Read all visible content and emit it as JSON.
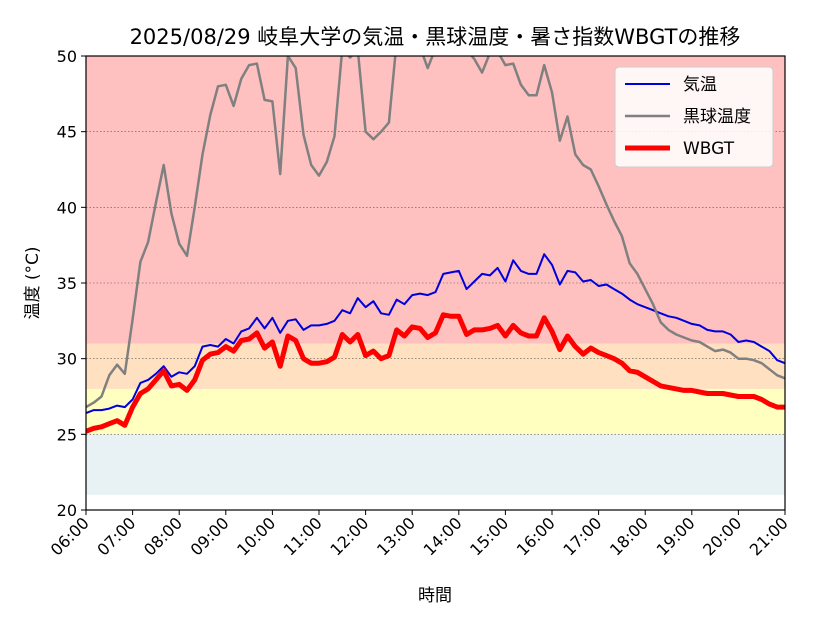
{
  "chart_data": {
    "type": "line",
    "title": "2025/08/29 岐阜大学の気温・黒球温度・暑さ指数WBGTの推移",
    "xlabel": "時間",
    "ylabel": "温度 (°C)",
    "xlim": [
      "06:00",
      "21:00"
    ],
    "ylim": [
      20,
      50
    ],
    "grid": true,
    "legend_position": "top-right",
    "x_ticks": [
      "06:00",
      "07:00",
      "08:00",
      "09:00",
      "10:00",
      "11:00",
      "12:00",
      "13:00",
      "14:00",
      "15:00",
      "16:00",
      "17:00",
      "18:00",
      "19:00",
      "20:00",
      "21:00"
    ],
    "y_ticks": [
      20,
      25,
      30,
      35,
      40,
      45,
      50
    ],
    "bands": [
      {
        "from": 21,
        "to": 25,
        "color": "#e8f2f4"
      },
      {
        "from": 25,
        "to": 28,
        "color": "#ffffc0"
      },
      {
        "from": 28,
        "to": 31,
        "color": "#ffe0c0"
      },
      {
        "from": 31,
        "to": 50,
        "color": "#ffc0c0"
      }
    ],
    "series": [
      {
        "name": "気温",
        "color": "#0000dd",
        "points": [
          [
            "06:00",
            26.4
          ],
          [
            "06:10",
            26.6
          ],
          [
            "06:20",
            26.6
          ],
          [
            "06:30",
            26.7
          ],
          [
            "06:40",
            26.9
          ],
          [
            "06:50",
            26.8
          ],
          [
            "07:00",
            27.3
          ],
          [
            "07:10",
            28.4
          ],
          [
            "07:20",
            28.6
          ],
          [
            "07:30",
            29.0
          ],
          [
            "07:40",
            29.5
          ],
          [
            "07:50",
            28.8
          ],
          [
            "08:00",
            29.1
          ],
          [
            "08:10",
            29.0
          ],
          [
            "08:20",
            29.5
          ],
          [
            "08:30",
            30.8
          ],
          [
            "08:40",
            30.9
          ],
          [
            "08:50",
            30.8
          ],
          [
            "09:00",
            31.3
          ],
          [
            "09:10",
            31.0
          ],
          [
            "09:20",
            31.8
          ],
          [
            "09:30",
            32.0
          ],
          [
            "09:40",
            32.7
          ],
          [
            "09:50",
            32.0
          ],
          [
            "10:00",
            32.7
          ],
          [
            "10:10",
            31.7
          ],
          [
            "10:20",
            32.5
          ],
          [
            "10:30",
            32.6
          ],
          [
            "10:40",
            31.9
          ],
          [
            "10:50",
            32.2
          ],
          [
            "11:00",
            32.2
          ],
          [
            "11:10",
            32.3
          ],
          [
            "11:20",
            32.5
          ],
          [
            "11:30",
            33.2
          ],
          [
            "11:40",
            33.0
          ],
          [
            "11:50",
            34.0
          ],
          [
            "12:00",
            33.4
          ],
          [
            "12:10",
            33.8
          ],
          [
            "12:20",
            33.0
          ],
          [
            "12:30",
            32.9
          ],
          [
            "12:40",
            33.9
          ],
          [
            "12:50",
            33.6
          ],
          [
            "13:00",
            34.2
          ],
          [
            "13:10",
            34.3
          ],
          [
            "13:20",
            34.2
          ],
          [
            "13:30",
            34.4
          ],
          [
            "13:40",
            35.6
          ],
          [
            "13:50",
            35.7
          ],
          [
            "14:00",
            35.8
          ],
          [
            "14:10",
            34.6
          ],
          [
            "14:20",
            35.1
          ],
          [
            "14:30",
            35.6
          ],
          [
            "14:40",
            35.5
          ],
          [
            "14:50",
            36.0
          ],
          [
            "15:00",
            35.1
          ],
          [
            "15:10",
            36.5
          ],
          [
            "15:20",
            35.8
          ],
          [
            "15:30",
            35.6
          ],
          [
            "15:40",
            35.6
          ],
          [
            "15:50",
            36.9
          ],
          [
            "16:00",
            36.2
          ],
          [
            "16:10",
            34.9
          ],
          [
            "16:20",
            35.8
          ],
          [
            "16:30",
            35.7
          ],
          [
            "16:40",
            35.1
          ],
          [
            "16:50",
            35.2
          ],
          [
            "17:00",
            34.8
          ],
          [
            "17:10",
            34.9
          ],
          [
            "17:20",
            34.6
          ],
          [
            "17:30",
            34.3
          ],
          [
            "17:40",
            33.9
          ],
          [
            "17:50",
            33.6
          ],
          [
            "18:00",
            33.4
          ],
          [
            "18:10",
            33.2
          ],
          [
            "18:20",
            33.0
          ],
          [
            "18:30",
            32.8
          ],
          [
            "18:40",
            32.7
          ],
          [
            "18:50",
            32.5
          ],
          [
            "19:00",
            32.3
          ],
          [
            "19:10",
            32.2
          ],
          [
            "19:20",
            31.9
          ],
          [
            "19:30",
            31.8
          ],
          [
            "19:40",
            31.8
          ],
          [
            "19:50",
            31.6
          ],
          [
            "20:00",
            31.1
          ],
          [
            "20:10",
            31.2
          ],
          [
            "20:20",
            31.1
          ],
          [
            "20:30",
            30.8
          ],
          [
            "20:40",
            30.5
          ],
          [
            "20:50",
            29.9
          ],
          [
            "21:00",
            29.7
          ]
        ]
      },
      {
        "name": "黒球温度",
        "color": "#808080",
        "points": [
          [
            "06:00",
            26.8
          ],
          [
            "06:10",
            27.1
          ],
          [
            "06:20",
            27.5
          ],
          [
            "06:30",
            28.9
          ],
          [
            "06:40",
            29.6
          ],
          [
            "06:50",
            29.0
          ],
          [
            "07:00",
            32.6
          ],
          [
            "07:10",
            36.4
          ],
          [
            "07:20",
            37.7
          ],
          [
            "07:30",
            40.3
          ],
          [
            "07:40",
            42.8
          ],
          [
            "07:50",
            39.6
          ],
          [
            "08:00",
            37.6
          ],
          [
            "08:10",
            36.8
          ],
          [
            "08:20",
            40.0
          ],
          [
            "08:30",
            43.5
          ],
          [
            "08:40",
            46.1
          ],
          [
            "08:50",
            48.0
          ],
          [
            "09:00",
            48.1
          ],
          [
            "09:10",
            46.7
          ],
          [
            "09:20",
            48.5
          ],
          [
            "09:30",
            49.4
          ],
          [
            "09:40",
            49.5
          ],
          [
            "09:50",
            47.1
          ],
          [
            "10:00",
            47.0
          ],
          [
            "10:10",
            42.2
          ],
          [
            "10:20",
            50.0
          ],
          [
            "10:30",
            49.2
          ],
          [
            "10:40",
            44.8
          ],
          [
            "10:50",
            42.8
          ],
          [
            "11:00",
            42.1
          ],
          [
            "11:10",
            43.0
          ],
          [
            "11:20",
            44.7
          ],
          [
            "11:30",
            50.5
          ],
          [
            "11:40",
            49.9
          ],
          [
            "11:50",
            50.4
          ],
          [
            "12:00",
            45.0
          ],
          [
            "12:10",
            44.5
          ],
          [
            "12:20",
            45.0
          ],
          [
            "12:30",
            45.6
          ],
          [
            "12:40",
            51.0
          ],
          [
            "12:50",
            51.2
          ],
          [
            "13:00",
            51.0
          ],
          [
            "13:10",
            50.6
          ],
          [
            "13:20",
            49.2
          ],
          [
            "13:30",
            50.5
          ],
          [
            "13:40",
            51.0
          ],
          [
            "13:50",
            51.0
          ],
          [
            "14:00",
            50.8
          ],
          [
            "14:10",
            50.4
          ],
          [
            "14:20",
            49.8
          ],
          [
            "14:30",
            48.9
          ],
          [
            "14:40",
            50.2
          ],
          [
            "14:50",
            50.3
          ],
          [
            "15:00",
            49.4
          ],
          [
            "15:10",
            49.5
          ],
          [
            "15:20",
            48.1
          ],
          [
            "15:30",
            47.4
          ],
          [
            "15:40",
            47.4
          ],
          [
            "15:50",
            49.4
          ],
          [
            "16:00",
            47.6
          ],
          [
            "16:10",
            44.4
          ],
          [
            "16:20",
            46.0
          ],
          [
            "16:30",
            43.5
          ],
          [
            "16:40",
            42.8
          ],
          [
            "16:50",
            42.5
          ],
          [
            "17:00",
            41.4
          ],
          [
            "17:10",
            40.2
          ],
          [
            "17:20",
            39.1
          ],
          [
            "17:30",
            38.1
          ],
          [
            "17:40",
            36.3
          ],
          [
            "17:50",
            35.6
          ],
          [
            "18:00",
            34.6
          ],
          [
            "18:10",
            33.6
          ],
          [
            "18:20",
            32.4
          ],
          [
            "18:30",
            31.9
          ],
          [
            "18:40",
            31.6
          ],
          [
            "18:50",
            31.4
          ],
          [
            "19:00",
            31.2
          ],
          [
            "19:10",
            31.1
          ],
          [
            "19:20",
            30.8
          ],
          [
            "19:30",
            30.5
          ],
          [
            "19:40",
            30.6
          ],
          [
            "19:50",
            30.4
          ],
          [
            "20:00",
            30.0
          ],
          [
            "20:10",
            30.0
          ],
          [
            "20:20",
            29.9
          ],
          [
            "20:30",
            29.7
          ],
          [
            "20:40",
            29.3
          ],
          [
            "20:50",
            28.9
          ],
          [
            "21:00",
            28.7
          ]
        ]
      },
      {
        "name": "WBGT",
        "color": "#ff0000",
        "points": [
          [
            "06:00",
            25.2
          ],
          [
            "06:10",
            25.4
          ],
          [
            "06:20",
            25.5
          ],
          [
            "06:30",
            25.7
          ],
          [
            "06:40",
            25.9
          ],
          [
            "06:50",
            25.6
          ],
          [
            "07:00",
            26.8
          ],
          [
            "07:10",
            27.7
          ],
          [
            "07:20",
            28.0
          ],
          [
            "07:30",
            28.6
          ],
          [
            "07:40",
            29.2
          ],
          [
            "07:50",
            28.2
          ],
          [
            "08:00",
            28.3
          ],
          [
            "08:10",
            27.9
          ],
          [
            "08:20",
            28.6
          ],
          [
            "08:30",
            29.9
          ],
          [
            "08:40",
            30.3
          ],
          [
            "08:50",
            30.4
          ],
          [
            "09:00",
            30.8
          ],
          [
            "09:10",
            30.5
          ],
          [
            "09:20",
            31.2
          ],
          [
            "09:30",
            31.3
          ],
          [
            "09:40",
            31.7
          ],
          [
            "09:50",
            30.7
          ],
          [
            "10:00",
            31.1
          ],
          [
            "10:10",
            29.5
          ],
          [
            "10:20",
            31.5
          ],
          [
            "10:30",
            31.2
          ],
          [
            "10:40",
            30.0
          ],
          [
            "10:50",
            29.7
          ],
          [
            "11:00",
            29.7
          ],
          [
            "11:10",
            29.8
          ],
          [
            "11:20",
            30.1
          ],
          [
            "11:30",
            31.6
          ],
          [
            "11:40",
            31.1
          ],
          [
            "11:50",
            31.6
          ],
          [
            "12:00",
            30.2
          ],
          [
            "12:10",
            30.5
          ],
          [
            "12:20",
            30.0
          ],
          [
            "12:30",
            30.2
          ],
          [
            "12:40",
            31.9
          ],
          [
            "12:50",
            31.5
          ],
          [
            "13:00",
            32.1
          ],
          [
            "13:10",
            32.0
          ],
          [
            "13:20",
            31.4
          ],
          [
            "13:30",
            31.7
          ],
          [
            "13:40",
            32.9
          ],
          [
            "13:50",
            32.8
          ],
          [
            "14:00",
            32.8
          ],
          [
            "14:10",
            31.6
          ],
          [
            "14:20",
            31.9
          ],
          [
            "14:30",
            31.9
          ],
          [
            "14:40",
            32.0
          ],
          [
            "14:50",
            32.2
          ],
          [
            "15:00",
            31.5
          ],
          [
            "15:10",
            32.2
          ],
          [
            "15:20",
            31.7
          ],
          [
            "15:30",
            31.5
          ],
          [
            "15:40",
            31.5
          ],
          [
            "15:50",
            32.7
          ],
          [
            "16:00",
            31.8
          ],
          [
            "16:10",
            30.6
          ],
          [
            "16:20",
            31.5
          ],
          [
            "16:30",
            30.8
          ],
          [
            "16:40",
            30.3
          ],
          [
            "16:50",
            30.7
          ],
          [
            "17:00",
            30.4
          ],
          [
            "17:10",
            30.2
          ],
          [
            "17:20",
            30.0
          ],
          [
            "17:30",
            29.7
          ],
          [
            "17:40",
            29.2
          ],
          [
            "17:50",
            29.1
          ],
          [
            "18:00",
            28.8
          ],
          [
            "18:10",
            28.5
          ],
          [
            "18:20",
            28.2
          ],
          [
            "18:30",
            28.1
          ],
          [
            "18:40",
            28.0
          ],
          [
            "18:50",
            27.9
          ],
          [
            "19:00",
            27.9
          ],
          [
            "19:10",
            27.8
          ],
          [
            "19:20",
            27.7
          ],
          [
            "19:30",
            27.7
          ],
          [
            "19:40",
            27.7
          ],
          [
            "19:50",
            27.6
          ],
          [
            "20:00",
            27.5
          ],
          [
            "20:10",
            27.5
          ],
          [
            "20:20",
            27.5
          ],
          [
            "20:30",
            27.3
          ],
          [
            "20:40",
            27.0
          ],
          [
            "20:50",
            26.8
          ],
          [
            "21:00",
            26.8
          ]
        ]
      }
    ]
  }
}
